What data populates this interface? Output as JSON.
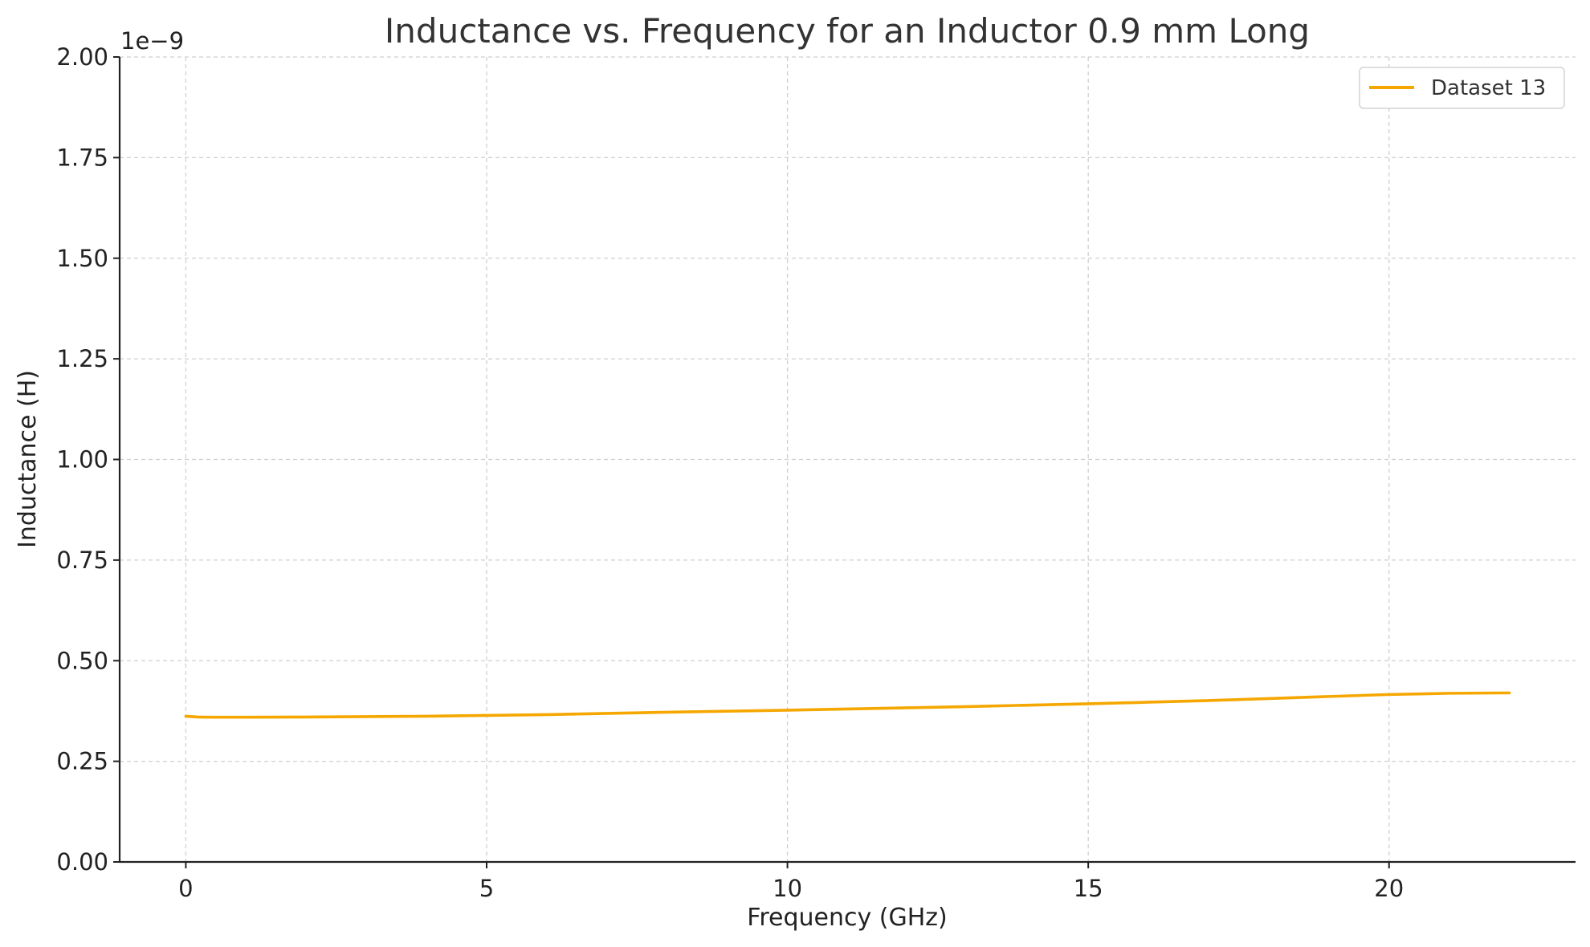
{
  "chart_data": {
    "type": "line",
    "title": "Inductance vs. Frequency for an Inductor 0.9 mm Long",
    "xlabel": "Frequency (GHz)",
    "ylabel": "Inductance (H)",
    "y_scale_label": "1e−9",
    "xlim": [
      -1.1,
      23.1
    ],
    "ylim": [
      0,
      2e-09
    ],
    "x_ticks": [
      0,
      5,
      10,
      15,
      20
    ],
    "x_tick_labels": [
      "0",
      "5",
      "10",
      "15",
      "20"
    ],
    "y_ticks": [
      0,
      2.5e-10,
      5e-10,
      7.5e-10,
      1e-09,
      1.25e-09,
      1.5e-09,
      1.75e-09,
      2e-09
    ],
    "y_tick_labels": [
      "0.00",
      "0.25",
      "0.50",
      "0.75",
      "1.00",
      "1.25",
      "1.50",
      "1.75",
      "2.00"
    ],
    "grid": true,
    "legend_position": "top-right",
    "series": [
      {
        "name": "Dataset 13",
        "color": "#f5a700",
        "x": [
          0,
          0.2,
          0.5,
          1,
          2,
          3,
          4,
          5,
          6,
          7,
          8,
          9,
          10,
          11,
          12,
          13,
          14,
          15,
          15.8,
          16,
          17,
          18,
          19,
          20,
          21,
          22
        ],
        "y": [
          3.62e-10,
          3.6e-10,
          3.595e-10,
          3.595e-10,
          3.6e-10,
          3.61e-10,
          3.62e-10,
          3.64e-10,
          3.66e-10,
          3.69e-10,
          3.72e-10,
          3.745e-10,
          3.77e-10,
          3.8e-10,
          3.83e-10,
          3.86e-10,
          3.895e-10,
          3.93e-10,
          3.96e-10,
          3.97e-10,
          4.01e-10,
          4.06e-10,
          4.11e-10,
          4.16e-10,
          4.19e-10,
          4.2e-10
        ]
      }
    ]
  }
}
